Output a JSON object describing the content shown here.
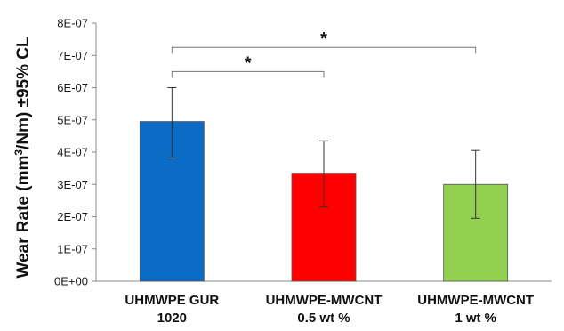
{
  "chart_data": {
    "type": "bar",
    "title": "",
    "xlabel": "",
    "ylabel": {
      "prefix": "Wear Rate (mm",
      "superscript": "3",
      "suffix": "/Nm) ±95% CL"
    },
    "ylim": [
      0,
      8e-07
    ],
    "y_ticks": [
      "0E+00",
      "1E-07",
      "2E-07",
      "3E-07",
      "4E-07",
      "5E-07",
      "6E-07",
      "7E-07",
      "8E-07"
    ],
    "grid": false,
    "categories": [
      [
        "UHMWPE GUR",
        "1020"
      ],
      [
        "UHMWPE-MWCNT",
        "0.5 wt %"
      ],
      [
        "UHMWPE-MWCNT",
        "1 wt %"
      ]
    ],
    "values": [
      4.95e-07,
      3.35e-07,
      3e-07
    ],
    "error_low": [
      3.85e-07,
      2.3e-07,
      1.95e-07
    ],
    "error_high": [
      6e-07,
      4.35e-07,
      4.05e-07
    ],
    "colors": [
      "#0a6cc4",
      "#ff0000",
      "#92d050"
    ],
    "significance": [
      {
        "from": 0,
        "to": 1,
        "label": "*",
        "level": 6.5e-07
      },
      {
        "from": 0,
        "to": 2,
        "label": "*",
        "level": 7.25e-07
      }
    ]
  }
}
